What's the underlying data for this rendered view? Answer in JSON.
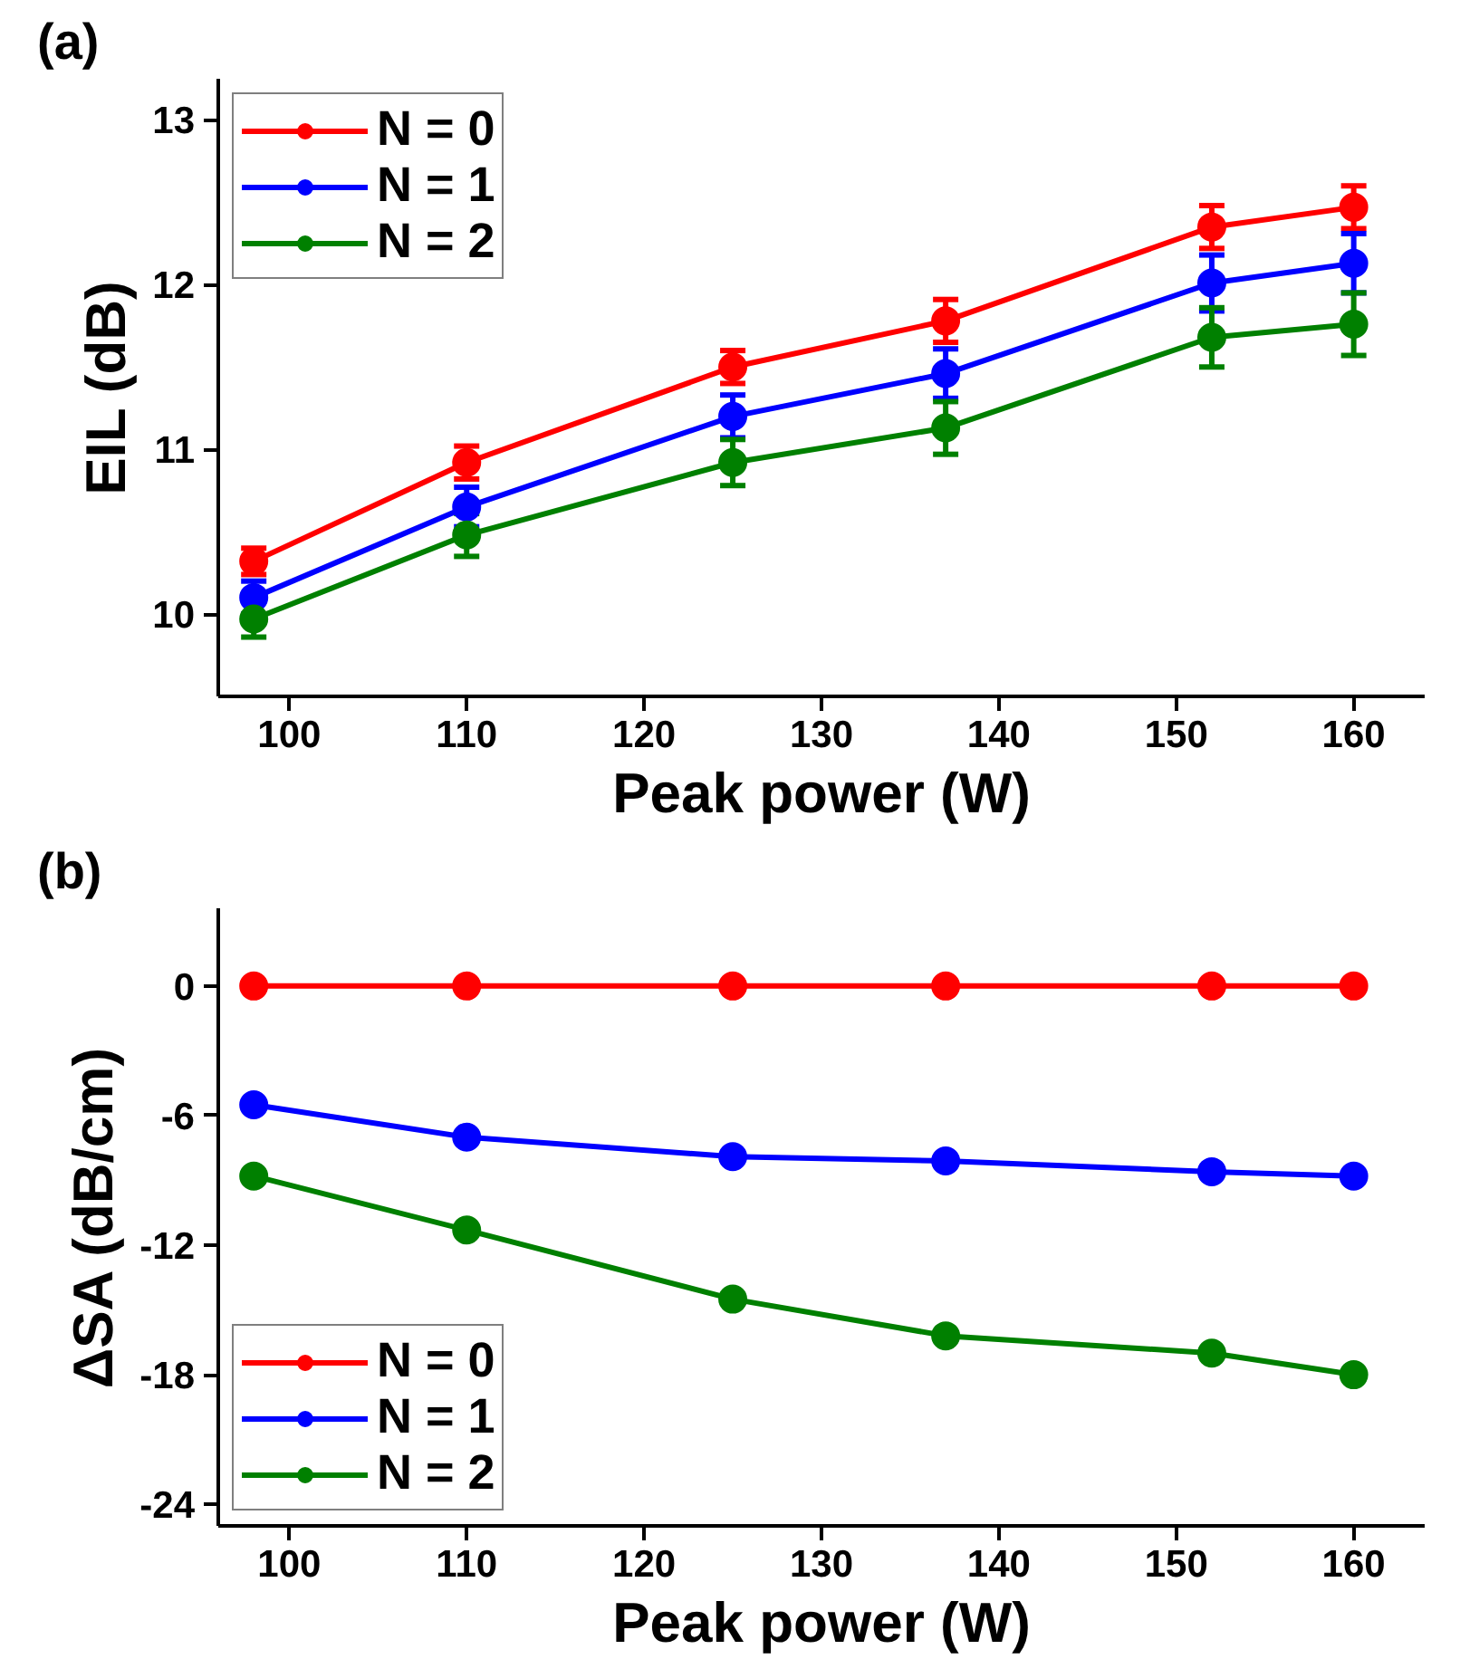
{
  "chart_data": [
    {
      "type": "line",
      "xlabel": "Peak power (W)",
      "ylabel": "EIL (dB)",
      "annotations": [
        "(a)"
      ],
      "x": [
        98,
        110,
        125,
        137,
        152,
        160
      ],
      "xlim": [
        96,
        164
      ],
      "xticks": [
        100,
        110,
        120,
        130,
        140,
        150,
        160
      ],
      "ylim": [
        9.5,
        13.25
      ],
      "yticks": [
        10,
        11,
        12,
        13
      ],
      "grid": false,
      "legend": "top left",
      "marker": "circle",
      "line_style": "solid",
      "series": [
        {
          "name": "N = 0",
          "color": "#ff0000",
          "values": [
            10.32,
            10.92,
            11.5,
            11.78,
            12.35,
            12.47
          ],
          "errors": [
            0.08,
            0.1,
            0.1,
            0.13,
            0.13,
            0.13
          ]
        },
        {
          "name": "N = 1",
          "color": "#0000ff",
          "values": [
            10.1,
            10.65,
            11.2,
            11.46,
            12.01,
            12.13
          ],
          "errors": [
            0.1,
            0.12,
            0.13,
            0.15,
            0.17,
            0.18
          ]
        },
        {
          "name": "N = 2",
          "color": "#008000",
          "values": [
            9.97,
            10.48,
            10.92,
            11.13,
            11.68,
            11.76
          ],
          "errors": [
            0.11,
            0.13,
            0.14,
            0.16,
            0.18,
            0.19
          ]
        }
      ]
    },
    {
      "type": "line",
      "xlabel": "Peak power (W)",
      "ylabel": "ΔSA (dB/cm)",
      "annotations": [
        "(b)"
      ],
      "x": [
        98,
        110,
        125,
        137,
        152,
        160
      ],
      "xlim": [
        96,
        164
      ],
      "xticks": [
        100,
        110,
        120,
        130,
        140,
        150,
        160
      ],
      "ylim": [
        -25,
        3.6
      ],
      "yticks": [
        0,
        -6,
        -12,
        -18,
        -24
      ],
      "grid": false,
      "legend": "bottom left",
      "marker": "circle",
      "line_style": "solid",
      "series": [
        {
          "name": "N = 0",
          "color": "#ff0000",
          "values": [
            0,
            0,
            0,
            0,
            0,
            0
          ]
        },
        {
          "name": "N = 1",
          "color": "#0000ff",
          "values": [
            -5.5,
            -7.0,
            -7.9,
            -8.1,
            -8.6,
            -8.8
          ]
        },
        {
          "name": "N = 2",
          "color": "#008000",
          "values": [
            -8.8,
            -11.3,
            -14.5,
            -16.2,
            -17.0,
            -18.0
          ]
        }
      ]
    }
  ]
}
